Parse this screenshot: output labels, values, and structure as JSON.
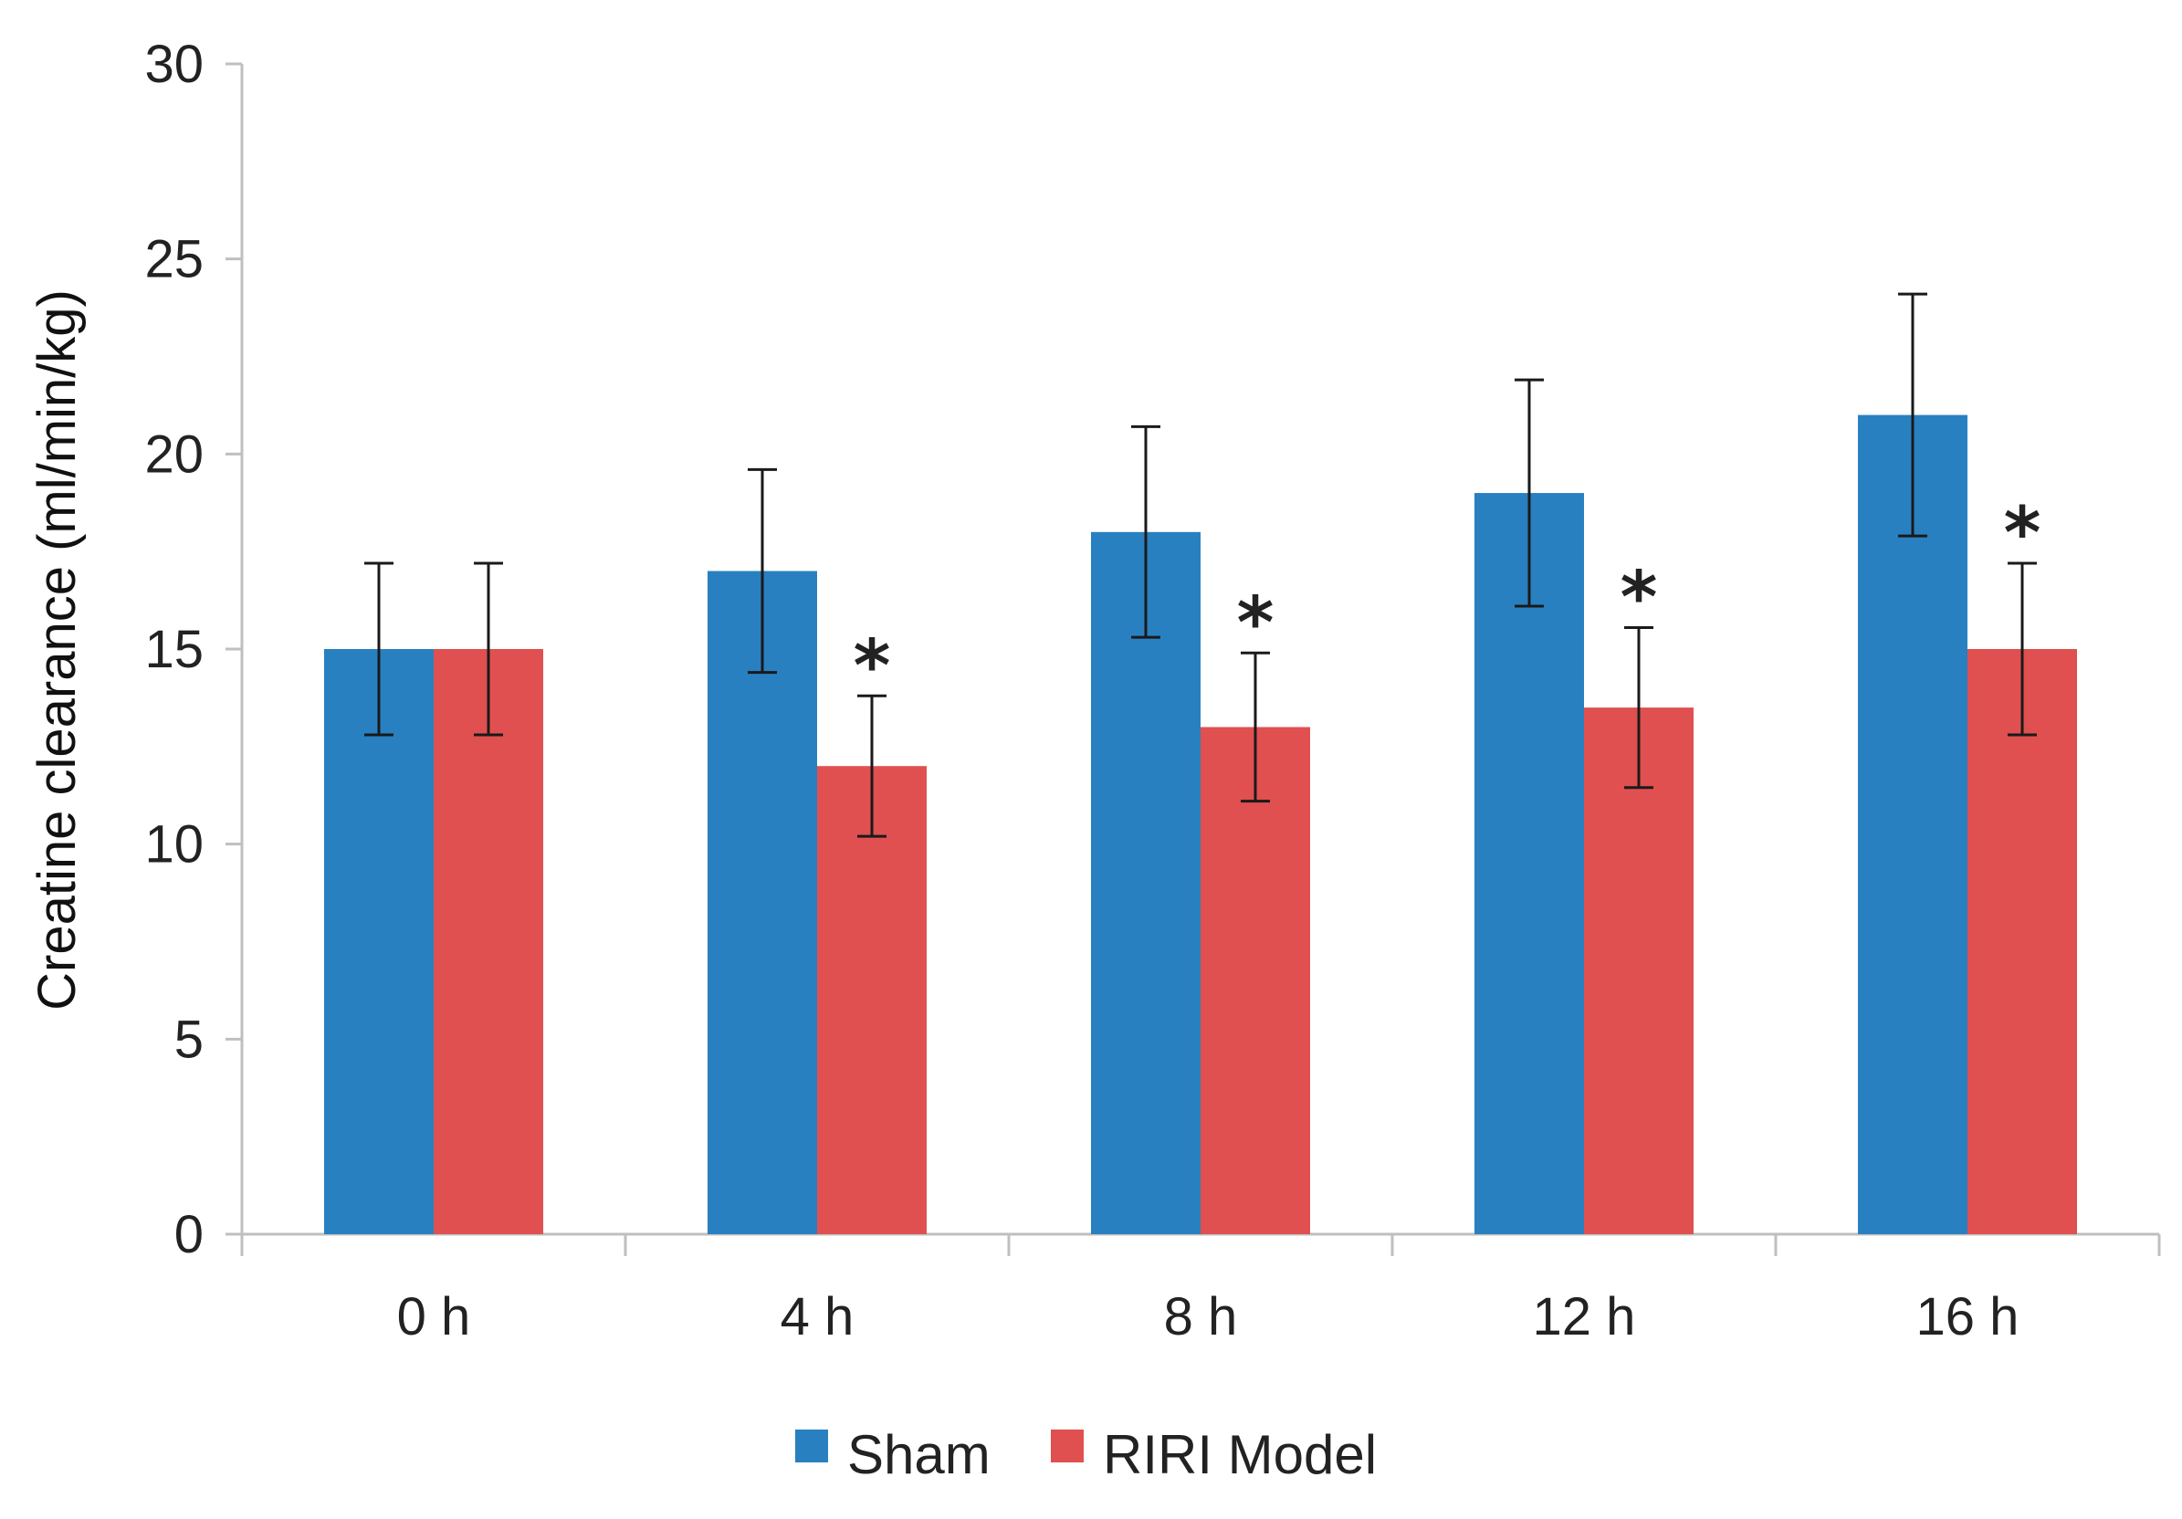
{
  "chart_data": {
    "type": "bar",
    "title": "",
    "xlabel": "",
    "ylabel": "Creatine clearance (ml/min/kg)",
    "categories": [
      "0 h",
      "4 h",
      "8 h",
      "12 h",
      "16 h"
    ],
    "ylim": [
      0,
      30
    ],
    "yticks": [
      0,
      5,
      10,
      15,
      20,
      25,
      30
    ],
    "grid": false,
    "legend_position": "bottom",
    "series": [
      {
        "name": "Sham",
        "color": "#2980C0",
        "values": [
          15,
          17,
          18,
          19,
          21
        ],
        "errors": [
          2.2,
          2.6,
          2.7,
          2.9,
          3.1
        ],
        "significance": [
          "",
          "",
          "",
          "",
          ""
        ]
      },
      {
        "name": "RIRI Model",
        "color": "#E05050",
        "values": [
          15,
          12,
          13,
          13.5,
          15
        ],
        "errors": [
          2.2,
          1.8,
          1.9,
          2.05,
          2.2
        ],
        "significance": [
          "",
          "*",
          "*",
          "*",
          "*"
        ]
      }
    ]
  }
}
